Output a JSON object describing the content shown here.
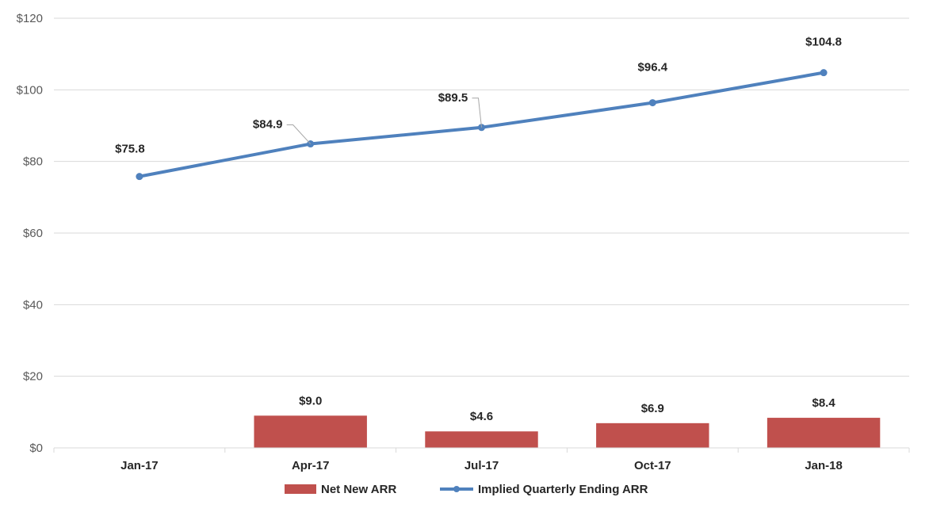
{
  "chart_data": {
    "type": "bar",
    "categories": [
      "Jan-17",
      "Apr-17",
      "Jul-17",
      "Oct-17",
      "Jan-18"
    ],
    "ylim": [
      0,
      120
    ],
    "yticks": [
      0,
      20,
      40,
      60,
      80,
      100,
      120
    ],
    "ytick_labels": [
      "$0",
      "$20",
      "$40",
      "$60",
      "$80",
      "$100",
      "$120"
    ],
    "grid": true,
    "legend_position": "bottom",
    "series": [
      {
        "name": "Net New ARR",
        "type": "bar",
        "color": "#c0504d",
        "values": [
          null,
          9.0,
          4.6,
          6.9,
          8.4
        ],
        "labels": [
          "",
          "$9.0",
          "$4.6",
          "$6.9",
          "$8.4"
        ]
      },
      {
        "name": "Implied Quarterly Ending ARR",
        "type": "line",
        "color": "#4f81bd",
        "values": [
          75.8,
          84.9,
          89.5,
          96.4,
          104.8
        ],
        "labels": [
          "$75.8",
          "$84.9",
          "$89.5",
          "$96.4",
          "$104.8"
        ]
      }
    ]
  }
}
